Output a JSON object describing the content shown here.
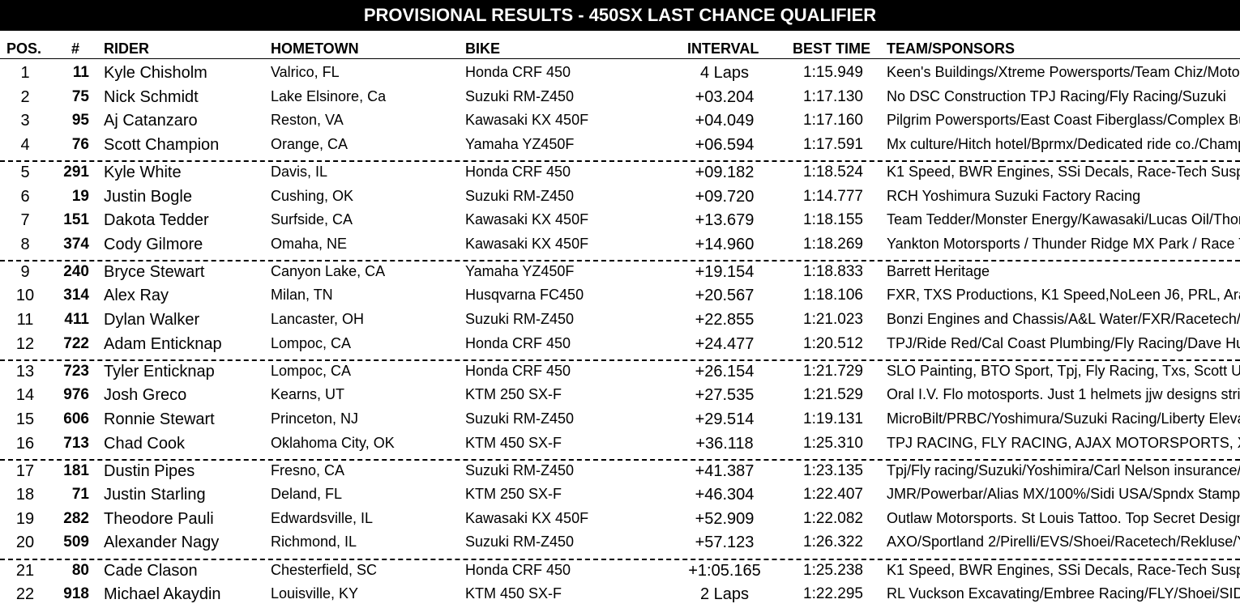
{
  "title": "PROVISIONAL RESULTS - 450SX LAST CHANCE QUALIFIER",
  "headers": {
    "pos": "POS.",
    "num": "#",
    "rider": "RIDER",
    "hometown": "HOMETOWN",
    "bike": "BIKE",
    "interval": "INTERVAL",
    "best_time": "BEST TIME",
    "team": "TEAM/SPONSORS"
  },
  "rows": [
    {
      "pos": "1",
      "num": "11",
      "rider": "Kyle Chisholm",
      "hometown": "Valrico, FL",
      "bike": "Honda CRF 450",
      "interval": "4 Laps",
      "best": "1:15.949",
      "team": "Keen's Buildings/Xtreme Powersports/Team Chiz/Motoc"
    },
    {
      "pos": "2",
      "num": "75",
      "rider": "Nick Schmidt",
      "hometown": "Lake Elsinore, Ca",
      "bike": "Suzuki RM-Z450",
      "interval": "+03.204",
      "best": "1:17.130",
      "team": "No DSC Construction TPJ Racing/Fly Racing/Suzuki"
    },
    {
      "pos": "3",
      "num": "95",
      "rider": "Aj Catanzaro",
      "hometown": "Reston, VA",
      "bike": "Kawasaki KX 450F",
      "interval": "+04.049",
      "best": "1:17.160",
      "team": "Pilgrim Powersports/East Coast Fiberglass/Complex Buil"
    },
    {
      "pos": "4",
      "num": "76",
      "rider": "Scott Champion",
      "hometown": "Orange, CA",
      "bike": "Yamaha YZ450F",
      "interval": "+06.594",
      "best": "1:17.591",
      "team": "Mx culture/Hitch hotel/Bprmx/Dedicated ride co./Champi"
    },
    {
      "pos": "5",
      "num": "291",
      "rider": "Kyle White",
      "hometown": "Davis, IL",
      "bike": "Honda CRF 450",
      "interval": "+09.182",
      "best": "1:18.524",
      "team": "K1 Speed, BWR Engines, SSi Decals, Race-Tech Suspe"
    },
    {
      "pos": "6",
      "num": "19",
      "rider": "Justin Bogle",
      "hometown": "Cushing, OK",
      "bike": "Suzuki RM-Z450",
      "interval": "+09.720",
      "best": "1:14.777",
      "team": "RCH Yoshimura Suzuki Factory Racing"
    },
    {
      "pos": "7",
      "num": "151",
      "rider": "Dakota Tedder",
      "hometown": "Surfside, CA",
      "bike": "Kawasaki KX 450F",
      "interval": "+13.679",
      "best": "1:18.155",
      "team": "Team Tedder/Monster Energy/Kawasaki/Lucas Oil/Thor"
    },
    {
      "pos": "8",
      "num": "374",
      "rider": "Cody Gilmore",
      "hometown": "Omaha, NE",
      "bike": "Kawasaki KX 450F",
      "interval": "+14.960",
      "best": "1:18.269",
      "team": "Yankton Motorsports / Thunder Ridge MX Park / Race T"
    },
    {
      "pos": "9",
      "num": "240",
      "rider": "Bryce Stewart",
      "hometown": "Canyon Lake, CA",
      "bike": "Yamaha YZ450F",
      "interval": "+19.154",
      "best": "1:18.833",
      "team": "Barrett Heritage"
    },
    {
      "pos": "10",
      "num": "314",
      "rider": "Alex Ray",
      "hometown": "Milan, TN",
      "bike": "Husqvarna FC450",
      "interval": "+20.567",
      "best": "1:18.106",
      "team": "FXR, TXS Productions, K1 Speed,NoLeen J6, PRL, Arai"
    },
    {
      "pos": "11",
      "num": "411",
      "rider": "Dylan Walker",
      "hometown": "Lancaster, OH",
      "bike": "Suzuki RM-Z450",
      "interval": "+22.855",
      "best": "1:21.023",
      "team": "Bonzi Engines and Chassis/A&L Water/FXR/Racetech/B"
    },
    {
      "pos": "12",
      "num": "722",
      "rider": "Adam Enticknap",
      "hometown": "Lompoc, CA",
      "bike": "Honda CRF 450",
      "interval": "+24.477",
      "best": "1:20.512",
      "team": "TPJ/Ride Red/Cal Coast Plumbing/Fly Racing/Dave Hun"
    },
    {
      "pos": "13",
      "num": "723",
      "rider": "Tyler Enticknap",
      "hometown": "Lompoc, CA",
      "bike": "Honda CRF 450",
      "interval": "+26.154",
      "best": "1:21.729",
      "team": "SLO Painting, BTO Sport, Tpj, Fly Racing, Txs, Scott US"
    },
    {
      "pos": "14",
      "num": "976",
      "rider": "Josh Greco",
      "hometown": "Kearns, UT",
      "bike": "KTM 250 SX-F",
      "interval": "+27.535",
      "best": "1:21.529",
      "team": "Oral I.V. Flo motosports.  Just 1 helmets  jjw designs stri"
    },
    {
      "pos": "15",
      "num": "606",
      "rider": "Ronnie Stewart",
      "hometown": "Princeton, NJ",
      "bike": "Suzuki RM-Z450",
      "interval": "+29.514",
      "best": "1:19.131",
      "team": "MicroBilt/PRBC/Yoshimura/Suzuki Racing/Liberty Elevat"
    },
    {
      "pos": "16",
      "num": "713",
      "rider": "Chad Cook",
      "hometown": "Oklahoma City, OK",
      "bike": "KTM 450 SX-F",
      "interval": "+36.118",
      "best": "1:25.310",
      "team": "TPJ RACING, FLY RACING, AJAX MOTORSPORTS, X"
    },
    {
      "pos": "17",
      "num": "181",
      "rider": "Dustin Pipes",
      "hometown": "Fresno, CA",
      "bike": "Suzuki RM-Z450",
      "interval": "+41.387",
      "best": "1:23.135",
      "team": "Tpj/Fly racing/Suzuki/Yoshimira/Carl Nelson insurance/P"
    },
    {
      "pos": "18",
      "num": "71",
      "rider": "Justin Starling",
      "hometown": "Deland, FL",
      "bike": "KTM 250 SX-F",
      "interval": "+46.304",
      "best": "1:22.407",
      "team": "JMR/Powerbar/Alias MX/100%/Sidi USA/Spndx Stampe"
    },
    {
      "pos": "19",
      "num": "282",
      "rider": "Theodore Pauli",
      "hometown": "Edwardsville, IL",
      "bike": "Kawasaki KX 450F",
      "interval": "+52.909",
      "best": "1:22.082",
      "team": "Outlaw Motorsports. St Louis Tattoo. Top Secret Designs"
    },
    {
      "pos": "20",
      "num": "509",
      "rider": "Alexander Nagy",
      "hometown": "Richmond, IL",
      "bike": "Suzuki RM-Z450",
      "interval": "+57.123",
      "best": "1:26.322",
      "team": "AXO/Sportland 2/Pirelli/EVS/Shoei/Racetech/Rekluse/Yo"
    },
    {
      "pos": "21",
      "num": "80",
      "rider": "Cade Clason",
      "hometown": "Chesterfield, SC",
      "bike": "Honda CRF 450",
      "interval": "+1:05.165",
      "best": "1:25.238",
      "team": "K1 Speed, BWR Engines, SSi Decals, Race-Tech Suspe"
    },
    {
      "pos": "22",
      "num": "918",
      "rider": "Michael Akaydin",
      "hometown": "Louisville, KY",
      "bike": "KTM 450 SX-F",
      "interval": "2 Laps",
      "best": "1:22.295",
      "team": "RL Vuckson Excavating/Embree Racing/FLY/Shoei/SIDI/"
    }
  ]
}
